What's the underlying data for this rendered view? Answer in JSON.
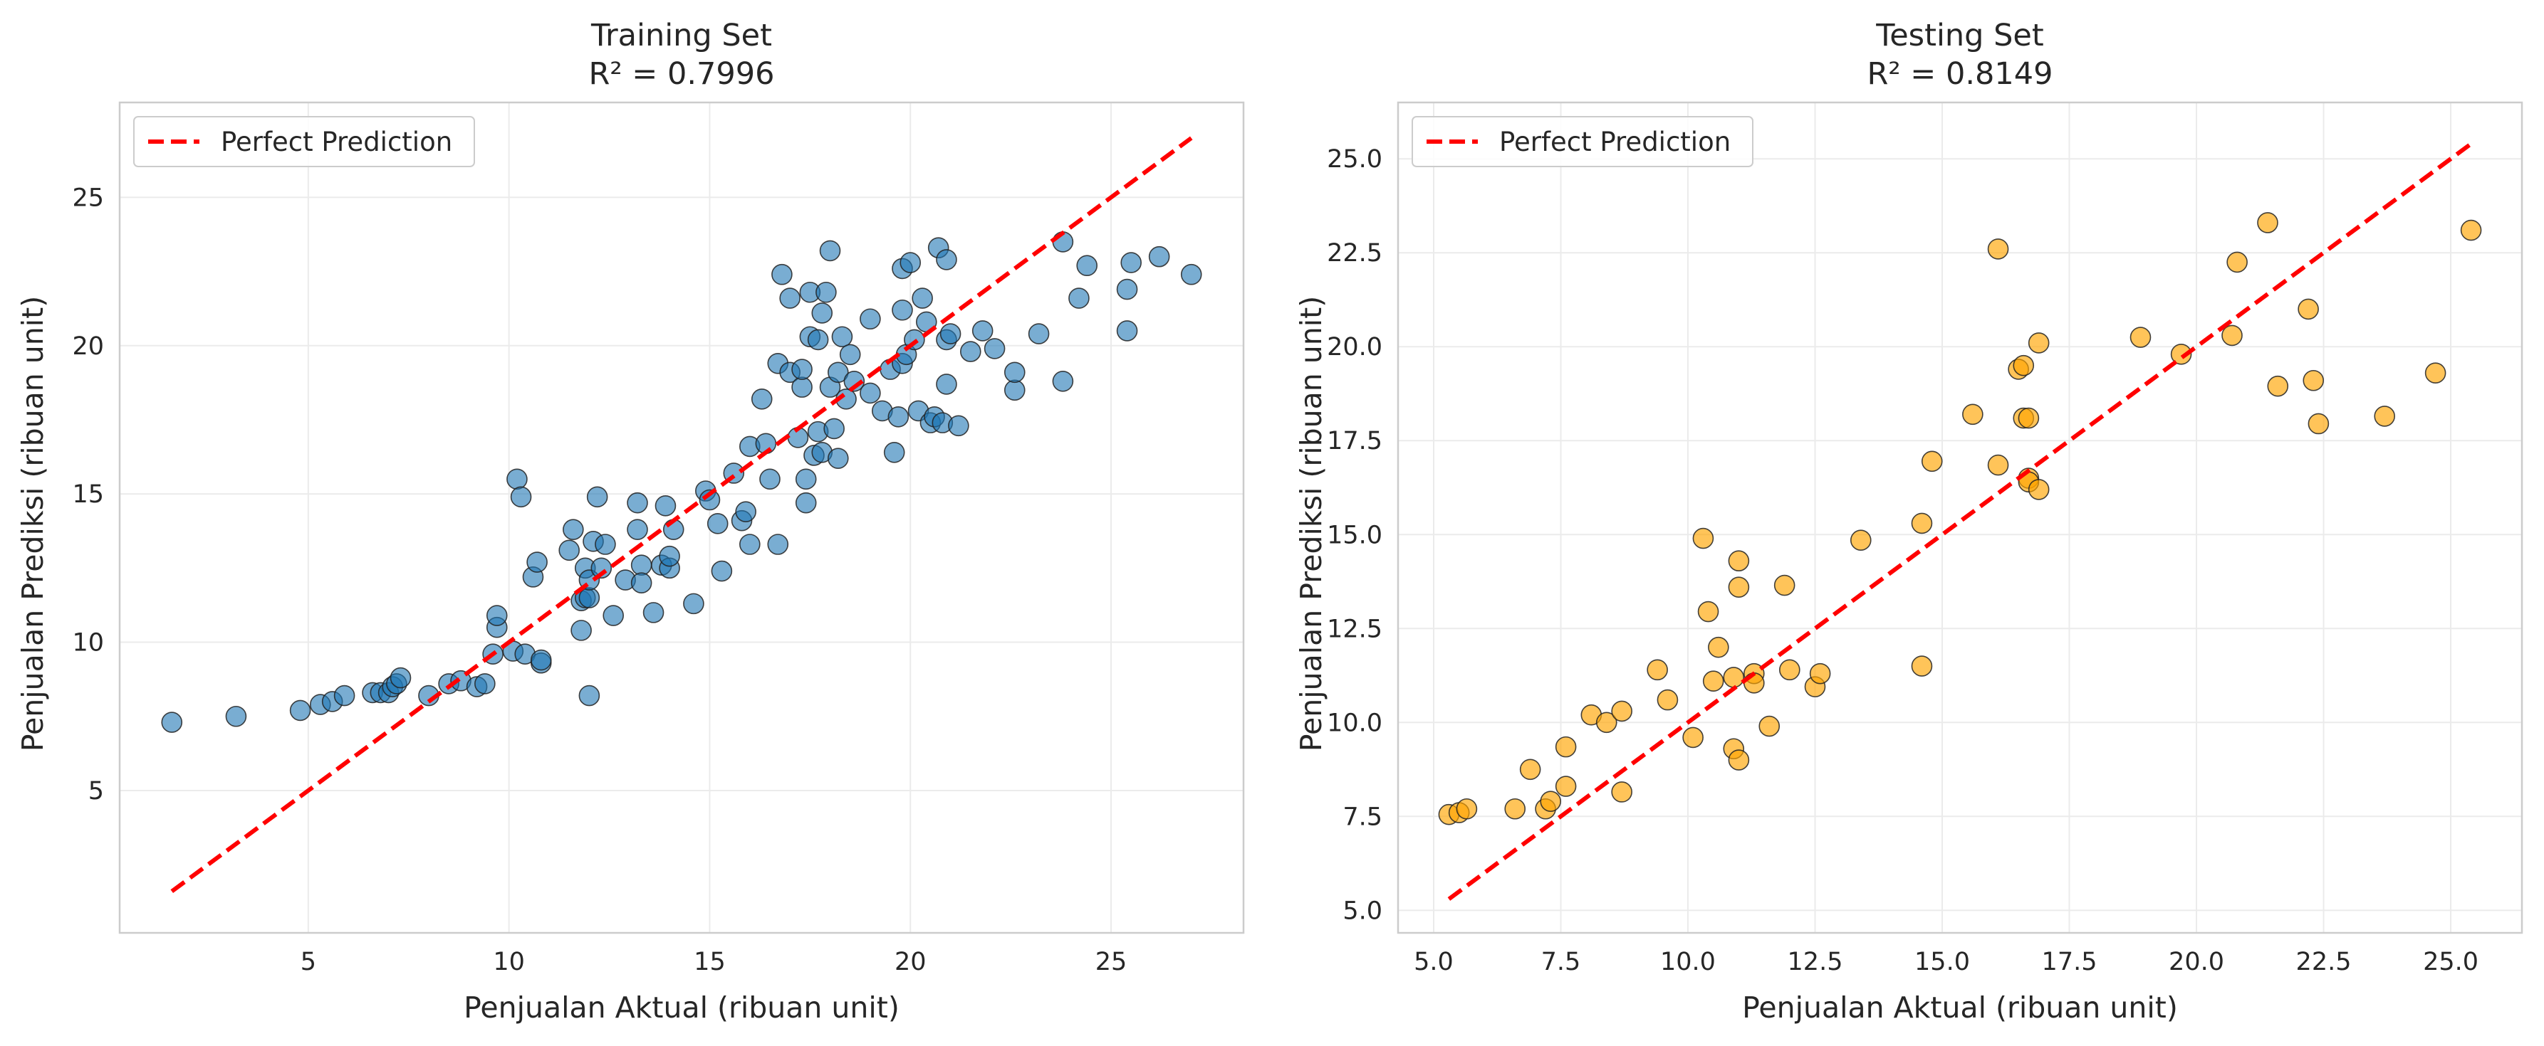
{
  "chart_data": [
    {
      "type": "scatter",
      "title": "Training Set",
      "subtitle": "R² = 0.7996",
      "xlabel": "Penjualan Aktual (ribuan unit)",
      "ylabel": "Penjualan Prediksi (ribuan unit)",
      "xlim": [
        0.3,
        28.3
      ],
      "ylim": [
        0.2,
        28.2
      ],
      "xticks": [
        5,
        10,
        15,
        20,
        25
      ],
      "yticks": [
        5,
        10,
        15,
        20,
        25
      ],
      "xtick_labels": [
        "5",
        "10",
        "15",
        "20",
        "25"
      ],
      "ytick_labels": [
        "5",
        "10",
        "15",
        "20",
        "25"
      ],
      "grid": true,
      "legend_position": "top-left",
      "point_color": "#1f77b4",
      "reference_line": {
        "label": "Perfect Prediction",
        "color": "#ff0000",
        "style": "dashed",
        "from": [
          1.6,
          1.6
        ],
        "to": [
          27.0,
          27.0
        ]
      },
      "series": [
        {
          "points": [
            [
              1.6,
              7.3
            ],
            [
              3.2,
              7.5
            ],
            [
              4.8,
              7.7
            ],
            [
              5.3,
              7.9
            ],
            [
              5.6,
              8.0
            ],
            [
              5.9,
              8.2
            ],
            [
              6.6,
              8.3
            ],
            [
              6.8,
              8.3
            ],
            [
              7.0,
              8.3
            ],
            [
              7.1,
              8.5
            ],
            [
              7.2,
              8.6
            ],
            [
              7.3,
              8.8
            ],
            [
              8.0,
              8.2
            ],
            [
              8.5,
              8.6
            ],
            [
              8.8,
              8.7
            ],
            [
              9.2,
              8.5
            ],
            [
              9.4,
              8.6
            ],
            [
              9.6,
              9.6
            ],
            [
              9.7,
              10.5
            ],
            [
              9.7,
              10.9
            ],
            [
              10.1,
              9.7
            ],
            [
              10.2,
              15.5
            ],
            [
              10.3,
              14.9
            ],
            [
              10.4,
              9.6
            ],
            [
              10.6,
              12.2
            ],
            [
              10.7,
              12.7
            ],
            [
              10.8,
              9.3
            ],
            [
              10.8,
              9.4
            ],
            [
              11.5,
              13.1
            ],
            [
              11.6,
              13.8
            ],
            [
              11.8,
              10.4
            ],
            [
              11.8,
              11.4
            ],
            [
              11.9,
              12.5
            ],
            [
              11.9,
              11.5
            ],
            [
              12.0,
              11.5
            ],
            [
              12.0,
              12.1
            ],
            [
              12.0,
              8.2
            ],
            [
              12.1,
              13.4
            ],
            [
              12.2,
              14.9
            ],
            [
              12.3,
              12.5
            ],
            [
              12.4,
              13.3
            ],
            [
              12.6,
              10.9
            ],
            [
              12.9,
              12.1
            ],
            [
              13.2,
              14.7
            ],
            [
              13.2,
              13.8
            ],
            [
              13.3,
              12.6
            ],
            [
              13.3,
              12.0
            ],
            [
              13.6,
              11.0
            ],
            [
              13.8,
              12.6
            ],
            [
              13.9,
              14.6
            ],
            [
              14.0,
              12.5
            ],
            [
              14.0,
              12.9
            ],
            [
              14.1,
              13.8
            ],
            [
              14.6,
              11.3
            ],
            [
              14.9,
              15.1
            ],
            [
              15.0,
              14.8
            ],
            [
              15.2,
              14.0
            ],
            [
              15.3,
              12.4
            ],
            [
              15.6,
              15.7
            ],
            [
              15.8,
              14.1
            ],
            [
              15.9,
              14.4
            ],
            [
              16.0,
              16.6
            ],
            [
              16.0,
              13.3
            ],
            [
              16.3,
              18.2
            ],
            [
              16.4,
              16.7
            ],
            [
              16.5,
              15.5
            ],
            [
              16.7,
              13.3
            ],
            [
              16.7,
              19.4
            ],
            [
              16.8,
              22.4
            ],
            [
              17.0,
              21.6
            ],
            [
              17.0,
              19.1
            ],
            [
              17.2,
              16.9
            ],
            [
              17.3,
              18.6
            ],
            [
              17.3,
              19.2
            ],
            [
              17.4,
              14.7
            ],
            [
              17.4,
              15.5
            ],
            [
              17.5,
              20.3
            ],
            [
              17.5,
              21.8
            ],
            [
              17.6,
              16.3
            ],
            [
              17.7,
              20.2
            ],
            [
              17.7,
              17.1
            ],
            [
              17.8,
              21.1
            ],
            [
              17.8,
              16.4
            ],
            [
              17.9,
              21.8
            ],
            [
              18.0,
              23.2
            ],
            [
              18.0,
              18.6
            ],
            [
              18.1,
              17.2
            ],
            [
              18.2,
              19.1
            ],
            [
              18.2,
              16.2
            ],
            [
              18.3,
              20.3
            ],
            [
              18.4,
              18.2
            ],
            [
              18.5,
              19.7
            ],
            [
              18.6,
              18.8
            ],
            [
              19.0,
              20.9
            ],
            [
              19.0,
              18.4
            ],
            [
              19.3,
              17.8
            ],
            [
              19.5,
              19.2
            ],
            [
              19.6,
              16.4
            ],
            [
              19.7,
              17.6
            ],
            [
              19.8,
              19.4
            ],
            [
              19.8,
              21.2
            ],
            [
              19.8,
              22.6
            ],
            [
              19.9,
              19.7
            ],
            [
              20.0,
              22.8
            ],
            [
              20.1,
              20.2
            ],
            [
              20.2,
              17.8
            ],
            [
              20.3,
              21.6
            ],
            [
              20.4,
              20.8
            ],
            [
              20.5,
              17.4
            ],
            [
              20.6,
              17.6
            ],
            [
              20.7,
              23.3
            ],
            [
              20.8,
              17.4
            ],
            [
              20.9,
              20.2
            ],
            [
              20.9,
              22.9
            ],
            [
              20.9,
              18.7
            ],
            [
              21.0,
              20.4
            ],
            [
              21.2,
              17.3
            ],
            [
              21.5,
              19.8
            ],
            [
              21.8,
              20.5
            ],
            [
              22.1,
              19.9
            ],
            [
              22.6,
              18.5
            ],
            [
              22.6,
              19.1
            ],
            [
              23.2,
              20.4
            ],
            [
              23.8,
              18.8
            ],
            [
              23.8,
              23.5
            ],
            [
              24.2,
              21.6
            ],
            [
              24.4,
              22.7
            ],
            [
              25.4,
              21.9
            ],
            [
              25.4,
              20.5
            ],
            [
              25.5,
              22.8
            ],
            [
              26.2,
              23.0
            ],
            [
              27.0,
              22.4
            ]
          ]
        }
      ]
    },
    {
      "type": "scatter",
      "title": "Testing Set",
      "subtitle": "R² = 0.8149",
      "xlabel": "Penjualan Aktual (ribuan unit)",
      "ylabel": "Penjualan Prediksi (ribuan unit)",
      "xlim": [
        4.3,
        26.4
      ],
      "ylim": [
        4.4,
        26.5
      ],
      "xticks": [
        5.0,
        7.5,
        10.0,
        12.5,
        15.0,
        17.5,
        20.0,
        22.5,
        25.0
      ],
      "yticks": [
        5.0,
        7.5,
        10.0,
        12.5,
        15.0,
        17.5,
        20.0,
        22.5,
        25.0
      ],
      "xtick_labels": [
        "5.0",
        "7.5",
        "10.0",
        "12.5",
        "15.0",
        "17.5",
        "20.0",
        "22.5",
        "25.0"
      ],
      "ytick_labels": [
        "5.0",
        "7.5",
        "10.0",
        "12.5",
        "15.0",
        "17.5",
        "20.0",
        "22.5",
        "25.0"
      ],
      "grid": true,
      "legend_position": "top-left",
      "point_color": "#ffa500",
      "reference_line": {
        "label": "Perfect Prediction",
        "color": "#ff0000",
        "style": "dashed",
        "from": [
          5.3,
          5.3
        ],
        "to": [
          25.4,
          25.4
        ]
      },
      "series": [
        {
          "points": [
            [
              5.3,
              7.55
            ],
            [
              5.5,
              7.6
            ],
            [
              5.65,
              7.7
            ],
            [
              6.6,
              7.7
            ],
            [
              6.9,
              8.75
            ],
            [
              7.2,
              7.7
            ],
            [
              7.3,
              7.9
            ],
            [
              7.6,
              8.3
            ],
            [
              7.6,
              9.35
            ],
            [
              8.1,
              10.2
            ],
            [
              8.4,
              10.0
            ],
            [
              8.7,
              8.15
            ],
            [
              8.7,
              10.3
            ],
            [
              9.4,
              11.4
            ],
            [
              9.6,
              10.6
            ],
            [
              10.1,
              9.6
            ],
            [
              10.3,
              14.9
            ],
            [
              10.4,
              12.95
            ],
            [
              10.5,
              11.1
            ],
            [
              10.6,
              12.0
            ],
            [
              10.9,
              11.2
            ],
            [
              10.9,
              9.3
            ],
            [
              11.0,
              9.0
            ],
            [
              11.0,
              14.3
            ],
            [
              11.0,
              13.6
            ],
            [
              11.3,
              11.3
            ],
            [
              11.3,
              11.05
            ],
            [
              11.6,
              9.9
            ],
            [
              11.9,
              13.65
            ],
            [
              12.0,
              11.4
            ],
            [
              12.5,
              10.95
            ],
            [
              12.6,
              11.3
            ],
            [
              13.4,
              14.85
            ],
            [
              14.6,
              15.3
            ],
            [
              14.6,
              11.5
            ],
            [
              14.8,
              16.95
            ],
            [
              15.6,
              18.2
            ],
            [
              16.1,
              16.85
            ],
            [
              16.1,
              22.6
            ],
            [
              16.5,
              19.4
            ],
            [
              16.6,
              18.1
            ],
            [
              16.6,
              19.5
            ],
            [
              16.7,
              18.1
            ],
            [
              16.7,
              16.5
            ],
            [
              16.7,
              16.4
            ],
            [
              16.9,
              16.2
            ],
            [
              16.9,
              20.1
            ],
            [
              18.9,
              20.25
            ],
            [
              19.7,
              19.8
            ],
            [
              20.7,
              20.3
            ],
            [
              20.8,
              22.25
            ],
            [
              21.4,
              23.3
            ],
            [
              21.6,
              18.95
            ],
            [
              22.2,
              21.0
            ],
            [
              22.3,
              19.1
            ],
            [
              22.4,
              17.95
            ],
            [
              23.7,
              18.15
            ],
            [
              24.7,
              19.3
            ],
            [
              25.4,
              23.1
            ]
          ]
        }
      ]
    }
  ]
}
